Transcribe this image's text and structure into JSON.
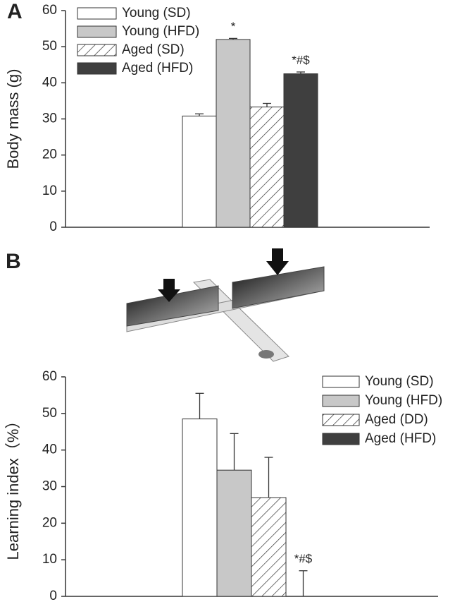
{
  "chart_data": [
    {
      "type": "bar",
      "panel": "A",
      "ylabel": "Body mass (g)",
      "categories": [
        null
      ],
      "ylim": [
        0,
        60
      ],
      "yticks": [
        0,
        10,
        20,
        30,
        40,
        50,
        60
      ],
      "series": [
        {
          "name": "Young (SD)",
          "color": "#ffffff",
          "values": [
            30.8
          ],
          "errors": [
            0.6
          ]
        },
        {
          "name": "Young (HFD)",
          "color": "#c8c8c8",
          "values": [
            52
          ],
          "errors": [
            0.3
          ],
          "annotation": "*"
        },
        {
          "name": "Aged (SD)",
          "color": "#ffffff",
          "pattern": "hatch",
          "values": [
            33.3
          ],
          "errors": [
            1.0
          ]
        },
        {
          "name": "Aged (HFD)",
          "color": "#3f3f3f",
          "values": [
            42.5
          ],
          "errors": [
            0.5
          ],
          "annotation": "*#$"
        }
      ]
    },
    {
      "type": "bar",
      "panel": "B",
      "ylabel": "Learning index（%）",
      "categories": [
        null
      ],
      "ylim": [
        0,
        60
      ],
      "yticks": [
        0,
        10,
        20,
        30,
        40,
        50,
        60
      ],
      "series": [
        {
          "name": "Young (SD)",
          "color": "#ffffff",
          "values": [
            48.5
          ],
          "errors": [
            7
          ]
        },
        {
          "name": "Young (HFD)",
          "color": "#c8c8c8",
          "values": [
            34.5
          ],
          "errors": [
            10
          ]
        },
        {
          "name": "Aged (DD)",
          "color": "#ffffff",
          "pattern": "hatch",
          "values": [
            27
          ],
          "errors": [
            11
          ]
        },
        {
          "name": "Aged (HFD)",
          "color": "#3f3f3f",
          "values": [
            0
          ],
          "errors": [
            7
          ],
          "annotation": "*#$"
        }
      ]
    }
  ]
}
